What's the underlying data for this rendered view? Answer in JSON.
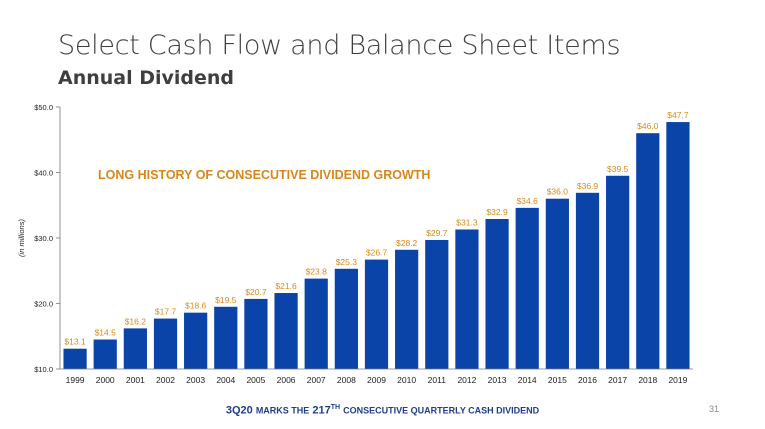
{
  "slide": {
    "title": "Select Cash Flow and Balance Sheet Items",
    "subtitle": "Annual Dividend",
    "page_number": "31",
    "footer": {
      "part1": "3Q20",
      "part2": "MARKS THE",
      "part3": "217",
      "part4": "TH",
      "part5": "CONSECUTIVE QUARTERLY CASH DIVIDEND"
    }
  },
  "colors": {
    "bar": "#0a44a8",
    "value_label": "#d98a1a",
    "annotation": "#d9861b",
    "axis_text": "#222222",
    "footer_text": "#1f3d8c"
  },
  "chart_data": {
    "type": "bar",
    "title": "",
    "xlabel": "",
    "ylabel": "(in millions)",
    "ylim": [
      10,
      50
    ],
    "y_ticks": [
      "$10.0",
      "$20.0",
      "$30.0",
      "$40.0",
      "$50.0"
    ],
    "annotation": "LONG HISTORY OF CONSECUTIVE DIVIDEND GROWTH",
    "categories": [
      "1999",
      "2000",
      "2001",
      "2002",
      "2003",
      "2004",
      "2005",
      "2006",
      "2007",
      "2008",
      "2009",
      "2010",
      "2011",
      "2012",
      "2013",
      "2014",
      "2015",
      "2016",
      "2017",
      "2018",
      "2019"
    ],
    "values": [
      13.1,
      14.5,
      16.2,
      17.7,
      18.6,
      19.5,
      20.7,
      21.6,
      23.8,
      25.3,
      26.7,
      28.2,
      29.7,
      31.3,
      32.9,
      34.6,
      36.0,
      36.9,
      39.5,
      46.0,
      47.7
    ],
    "value_labels": [
      "$13.1",
      "$14.5",
      "$16.2",
      "$17.7",
      "$18.6",
      "$19.5",
      "$20.7",
      "$21.6",
      "$23.8",
      "$25.3",
      "$26.7",
      "$28.2",
      "$29.7",
      "$31.3",
      "$32.9",
      "$34.6",
      "$36.0",
      "$36.9",
      "$39.5",
      "$46.0",
      "$47.7"
    ]
  }
}
